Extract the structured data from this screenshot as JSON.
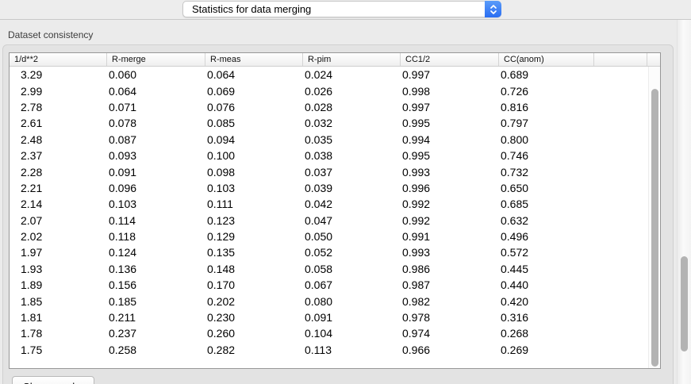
{
  "toolbar": {
    "dropdown": {
      "selected": "Statistics for data merging"
    }
  },
  "group": {
    "title": "Dataset consistency"
  },
  "table": {
    "columns": [
      "1/d**2",
      "R-merge",
      "R-meas",
      "R-pim",
      "CC1/2",
      "CC(anom)"
    ],
    "rows": [
      [
        "3.29",
        "0.060",
        "0.064",
        "0.024",
        "0.997",
        "0.689"
      ],
      [
        "2.99",
        "0.064",
        "0.069",
        "0.026",
        "0.998",
        "0.726"
      ],
      [
        "2.78",
        "0.071",
        "0.076",
        "0.028",
        "0.997",
        "0.816"
      ],
      [
        "2.61",
        "0.078",
        "0.085",
        "0.032",
        "0.995",
        "0.797"
      ],
      [
        "2.48",
        "0.087",
        "0.094",
        "0.035",
        "0.994",
        "0.800"
      ],
      [
        "2.37",
        "0.093",
        "0.100",
        "0.038",
        "0.995",
        "0.746"
      ],
      [
        "2.28",
        "0.091",
        "0.098",
        "0.037",
        "0.993",
        "0.732"
      ],
      [
        "2.21",
        "0.096",
        "0.103",
        "0.039",
        "0.996",
        "0.650"
      ],
      [
        "2.14",
        "0.103",
        "0.111",
        "0.042",
        "0.992",
        "0.685"
      ],
      [
        "2.07",
        "0.114",
        "0.123",
        "0.047",
        "0.992",
        "0.632"
      ],
      [
        "2.02",
        "0.118",
        "0.129",
        "0.050",
        "0.991",
        "0.496"
      ],
      [
        "1.97",
        "0.124",
        "0.135",
        "0.052",
        "0.993",
        "0.572"
      ],
      [
        "1.93",
        "0.136",
        "0.148",
        "0.058",
        "0.986",
        "0.445"
      ],
      [
        "1.89",
        "0.156",
        "0.170",
        "0.067",
        "0.987",
        "0.440"
      ],
      [
        "1.85",
        "0.185",
        "0.202",
        "0.080",
        "0.982",
        "0.420"
      ],
      [
        "1.81",
        "0.211",
        "0.230",
        "0.091",
        "0.978",
        "0.316"
      ],
      [
        "1.78",
        "0.237",
        "0.260",
        "0.104",
        "0.974",
        "0.268"
      ],
      [
        "1.75",
        "0.258",
        "0.282",
        "0.113",
        "0.966",
        "0.269"
      ]
    ]
  },
  "footer": {
    "show_graphs_label": "Show graphs"
  },
  "colors": {
    "accent_blue": "#3b7ef2"
  },
  "icons": {
    "dropdown_stepper": "chevron-up-down"
  }
}
